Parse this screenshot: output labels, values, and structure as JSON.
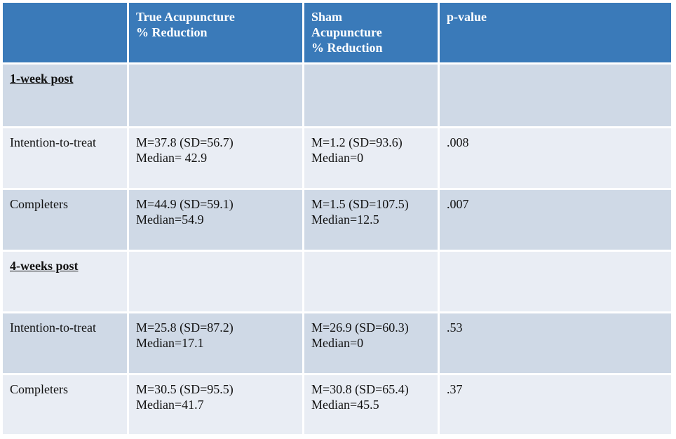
{
  "table": {
    "header": [
      [],
      [
        "True Acupuncture",
        "% Reduction"
      ],
      [
        "Sham",
        "Acupuncture",
        "% Reduction"
      ],
      [
        "p-value"
      ]
    ],
    "rows": [
      {
        "section": "1-week post"
      },
      {
        "cells": [
          [
            "Intention-to-treat"
          ],
          [
            "M=37.8 (SD=56.7)",
            "Median= 42.9"
          ],
          [
            "M=1.2 (SD=93.6)",
            "Median=0"
          ],
          [
            ".008"
          ]
        ]
      },
      {
        "cells": [
          [
            "Completers"
          ],
          [
            "M=44.9 (SD=59.1)",
            "Median=54.9"
          ],
          [
            "M=1.5 (SD=107.5)",
            "Median=12.5"
          ],
          [
            ".007"
          ]
        ]
      },
      {
        "section": "4-weeks post"
      },
      {
        "cells": [
          [
            "Intention-to-treat"
          ],
          [
            "M=25.8 (SD=87.2)",
            "Median=17.1"
          ],
          [
            "M=26.9 (SD=60.3)",
            "Median=0"
          ],
          [
            ".53"
          ]
        ]
      },
      {
        "cells": [
          [
            "Completers"
          ],
          [
            "M=30.5 (SD=95.5)",
            "Median=41.7"
          ],
          [
            "M=30.8 (SD=65.4)",
            "Median=45.5"
          ],
          [
            ".37"
          ]
        ]
      }
    ]
  }
}
